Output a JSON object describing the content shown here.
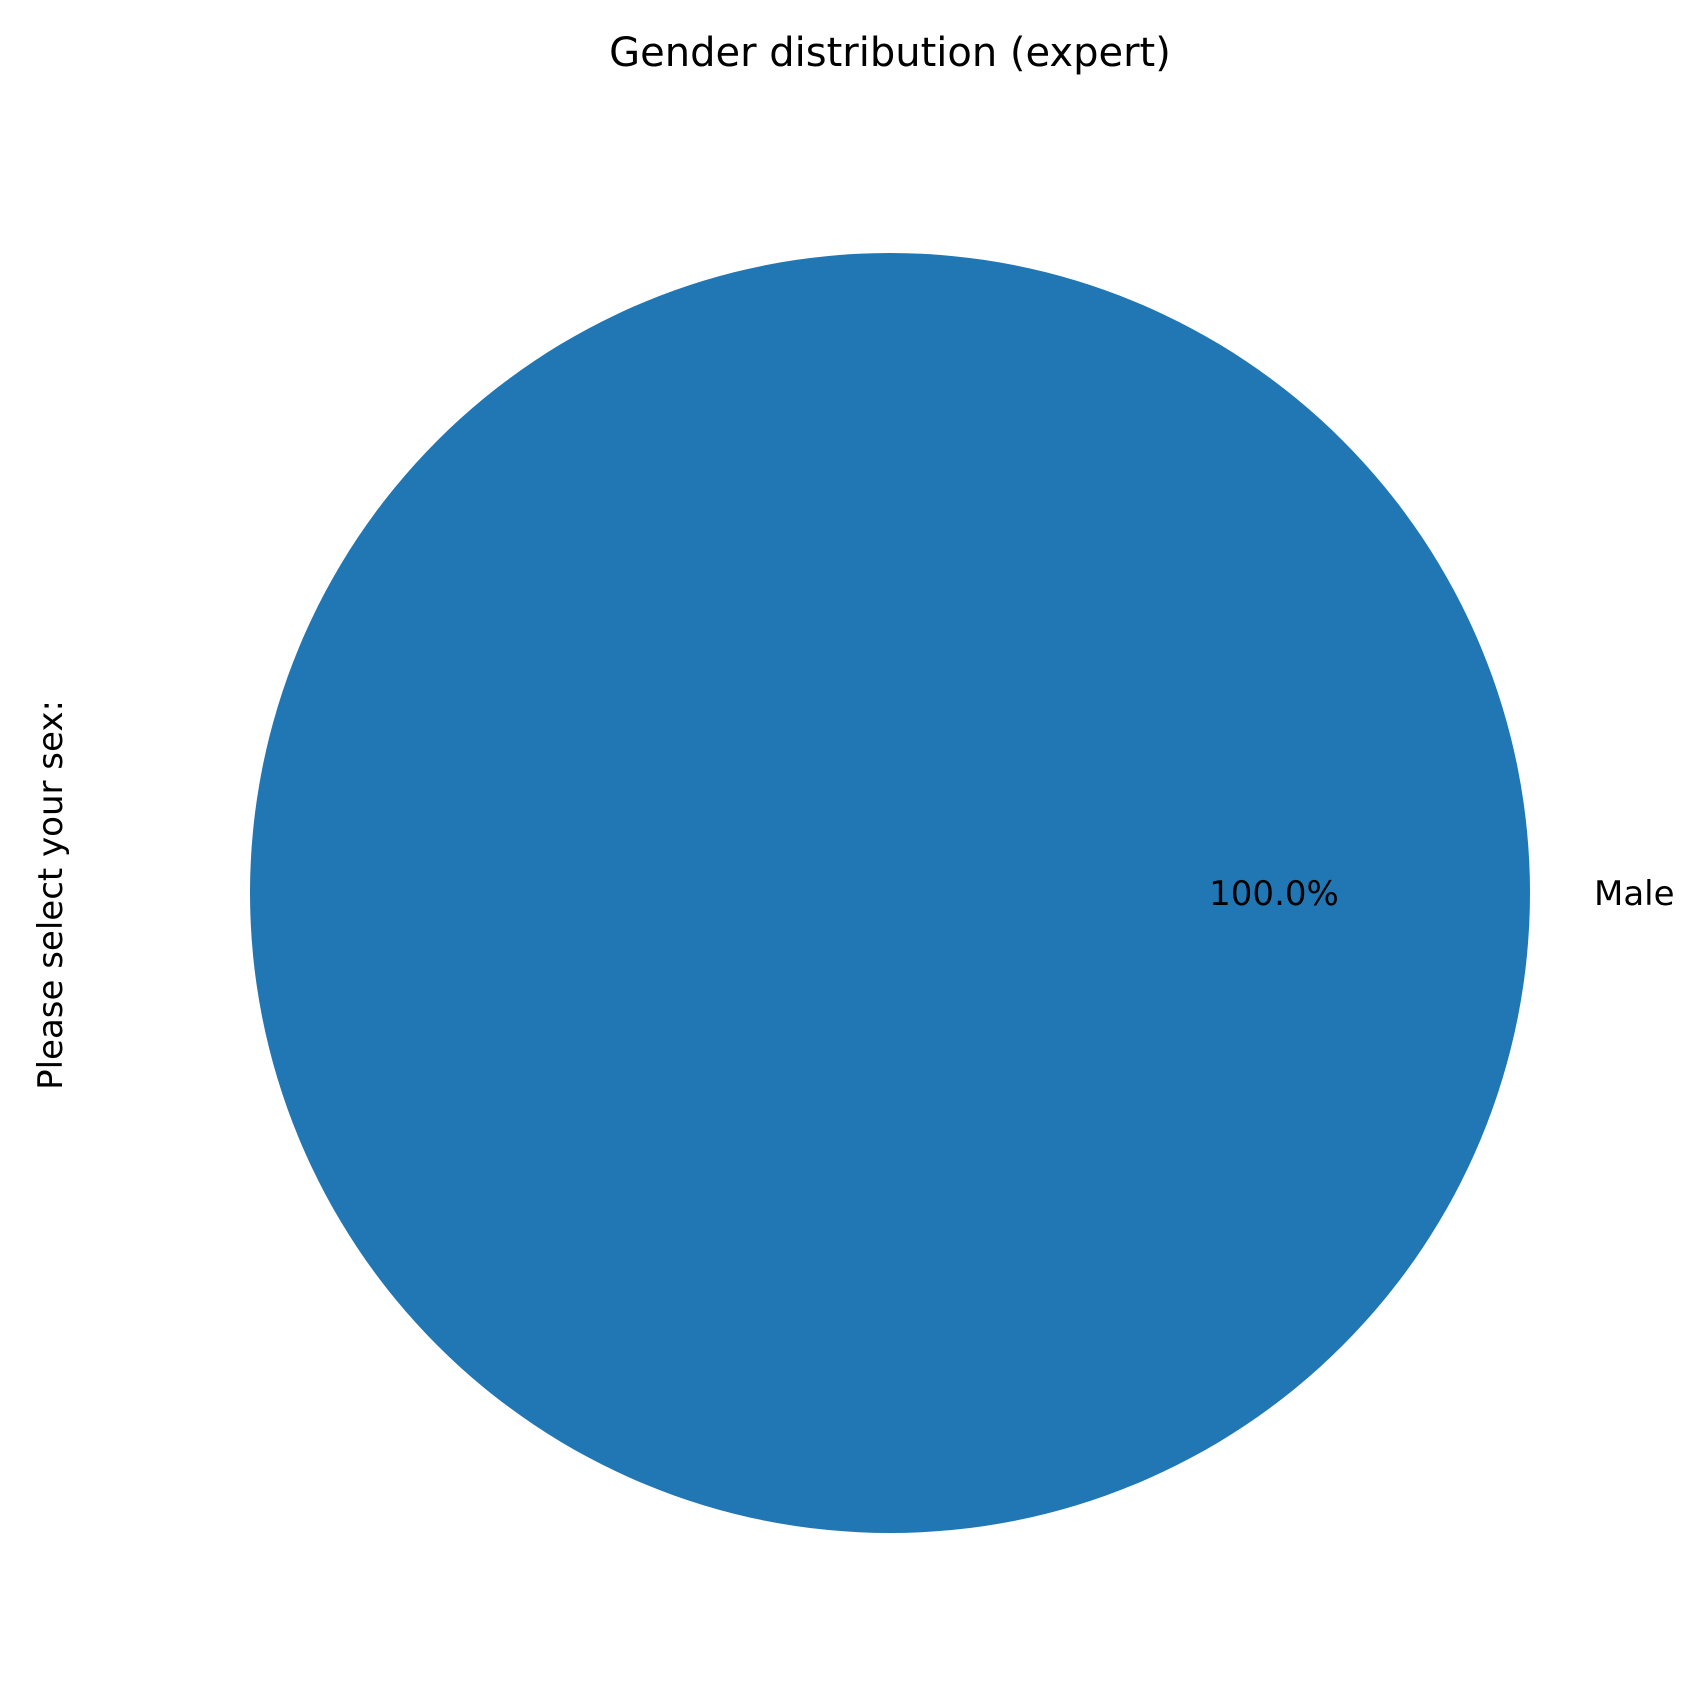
{
  "chart_data": {
    "type": "pie",
    "title": "Gender distribution (expert)",
    "ylabel": "Please select your sex:",
    "categories": [
      "Male"
    ],
    "values": [
      100.0
    ],
    "percent_labels": [
      "100.0%"
    ],
    "colors": [
      "#2077b4"
    ],
    "legend": false
  }
}
